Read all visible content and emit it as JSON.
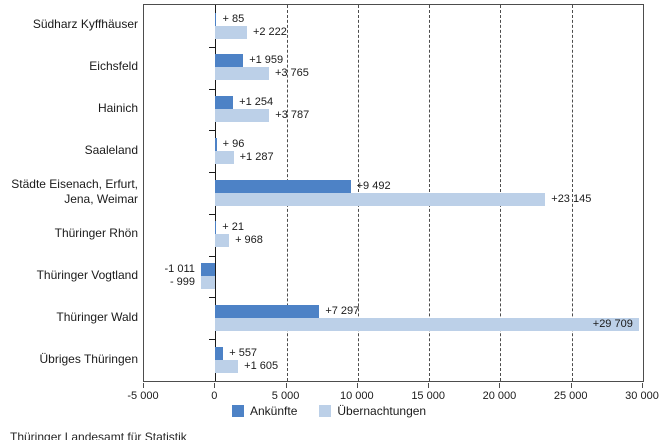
{
  "chart_data": {
    "type": "bar",
    "orientation": "horizontal",
    "title": "",
    "categories": [
      "Südharz Kyffhäuser",
      "Eichsfeld",
      "Hainich",
      "Saaleland",
      "Städte Eisenach, Erfurt,\nJena, Weimar",
      "Thüringer Rhön",
      "Thüringer Vogtland",
      "Thüringer Wald",
      "Übriges Thüringen"
    ],
    "series": [
      {
        "name": "Ankünfte",
        "color": "#4d82c6",
        "values": [
          85,
          1959,
          1254,
          96,
          9492,
          21,
          -1011,
          7297,
          557
        ],
        "labels": [
          "+ 85",
          "+1 959",
          "+1 254",
          "+ 96",
          "+9 492",
          "+ 21",
          "-1 011",
          "+7 297",
          "+ 557"
        ]
      },
      {
        "name": "Übernachtungen",
        "color": "#bcd0e8",
        "values": [
          2222,
          3765,
          3787,
          1287,
          23145,
          968,
          -999,
          29709,
          1605
        ],
        "labels": [
          "+2 222",
          "+3 765",
          "+3 787",
          "+1 287",
          "+23 145",
          "+ 968",
          "- 999",
          "+29 709",
          "+1 605"
        ]
      }
    ],
    "xlim": [
      -5000,
      30000
    ],
    "xticks": [
      {
        "value": -5000,
        "label": "-5 000"
      },
      {
        "value": 0,
        "label": "0"
      },
      {
        "value": 5000,
        "label": "5 000"
      },
      {
        "value": 10000,
        "label": "10 000"
      },
      {
        "value": 15000,
        "label": "15 000"
      },
      {
        "value": 20000,
        "label": "20 000"
      },
      {
        "value": 25000,
        "label": "25 000"
      },
      {
        "value": 30000,
        "label": "30 000"
      }
    ],
    "gridlines": [
      5000,
      10000,
      15000,
      20000,
      25000
    ],
    "grid_style": "dashed-vertical",
    "legend_position": "bottom"
  },
  "source": "Thüringer Landesamt für Statistik"
}
